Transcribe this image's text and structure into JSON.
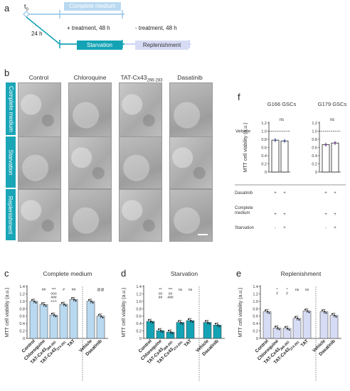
{
  "panel_labels": {
    "a": "a",
    "b": "b",
    "c": "c",
    "d": "d",
    "e": "e",
    "f": "f"
  },
  "timeline": {
    "t0": "t",
    "t0_sub": "0",
    "complete_medium": "Complete medium",
    "h24": "24 h",
    "treatment": "+ treatment, 48 h",
    "minus_treatment": "- treatment, 48 h",
    "starvation": "Starvation",
    "replenishment": "Replenishment",
    "colors": {
      "light_blue": "#b9d9f0",
      "teal": "#14a3b5",
      "lavender": "#d7dcf5",
      "line_blue": "#9cc8ea",
      "line_teal": "#14a3b5"
    }
  },
  "micrographs": {
    "columns": [
      "Control",
      "Chloroquine",
      "TAT-Cx43",
      "Dasatinib"
    ],
    "column_sub": "266-283",
    "rows": [
      "Complete medium",
      "Starvation",
      "Replenishment"
    ],
    "row_color": "#1aa6b7"
  },
  "panel_f": {
    "ylabel": "MTT cell viability (a.u.)",
    "vehicle_label": "Vehicle",
    "ticks": [
      "0",
      "0.2",
      "0.4",
      "0.6",
      "0.8",
      "1.0",
      "1.2"
    ],
    "groups": [
      {
        "title": "G166 GSCs",
        "ns": "ns",
        "values": [
          0.78,
          0.76
        ],
        "dasatinib": [
          "+",
          "+"
        ],
        "complete": [
          "+",
          "+"
        ],
        "starvation": [
          "-",
          "+"
        ]
      },
      {
        "title": "G179 GSCs",
        "ns": "ns",
        "values": [
          0.67,
          0.71
        ],
        "dasatinib": [
          "+",
          "+"
        ],
        "complete": [
          "+",
          "+"
        ],
        "starvation": [
          "-",
          "+"
        ]
      }
    ],
    "rows": [
      "Dasatinib",
      "Complete medium",
      "Starvation"
    ]
  },
  "bottom": {
    "ylabel": "MTT cell viability (a.u.)",
    "ticks": [
      "0",
      "0.2",
      "0.4",
      "0.6",
      "0.8",
      "1.0",
      "1.2",
      "1.4"
    ],
    "xlabels": [
      "Control",
      "Chloroquine",
      "TAT-Cx43",
      "TAT-Cx43",
      "TAT",
      "Vehicle",
      "Dasatinib"
    ],
    "xlabel_subs": [
      "",
      "",
      "266-283",
      "274-291",
      "",
      "",
      ""
    ],
    "panels": [
      {
        "title": "Complete medium",
        "color": "#b9d9f0",
        "values": [
          1.0,
          0.91,
          0.63,
          0.92,
          1.05,
          1.0,
          0.6
        ],
        "annot": [
          [],
          [
            "##"
          ],
          [
            "***",
            "ooo",
            "###",
            "+++"
          ],
          [
            "#"
          ],
          [
            "##"
          ],
          [],
          [
            "@@"
          ]
        ],
        "right_annot": "@@"
      },
      {
        "title": "Starvation",
        "color": "#14a3b5",
        "values": [
          0.46,
          0.21,
          0.17,
          0.43,
          0.48,
          0.43,
          0.36
        ],
        "annot": [
          [],
          [
            "**",
            "oo",
            "##"
          ],
          [
            "***",
            "oo",
            "###"
          ],
          [
            "ns"
          ],
          [
            "ns"
          ],
          [],
          []
        ],
        "right_annot": "ns"
      },
      {
        "title": "Replenishment",
        "color": "#d7dcf5",
        "values": [
          0.72,
          0.28,
          0.27,
          0.54,
          0.74,
          0.72,
          0.62
        ],
        "annot": [
          [],
          [
            "*",
            "#"
          ],
          [
            "*",
            "#"
          ],
          [
            "ns"
          ],
          [
            "ns"
          ],
          [],
          []
        ],
        "right_annot": "ns"
      }
    ]
  }
}
